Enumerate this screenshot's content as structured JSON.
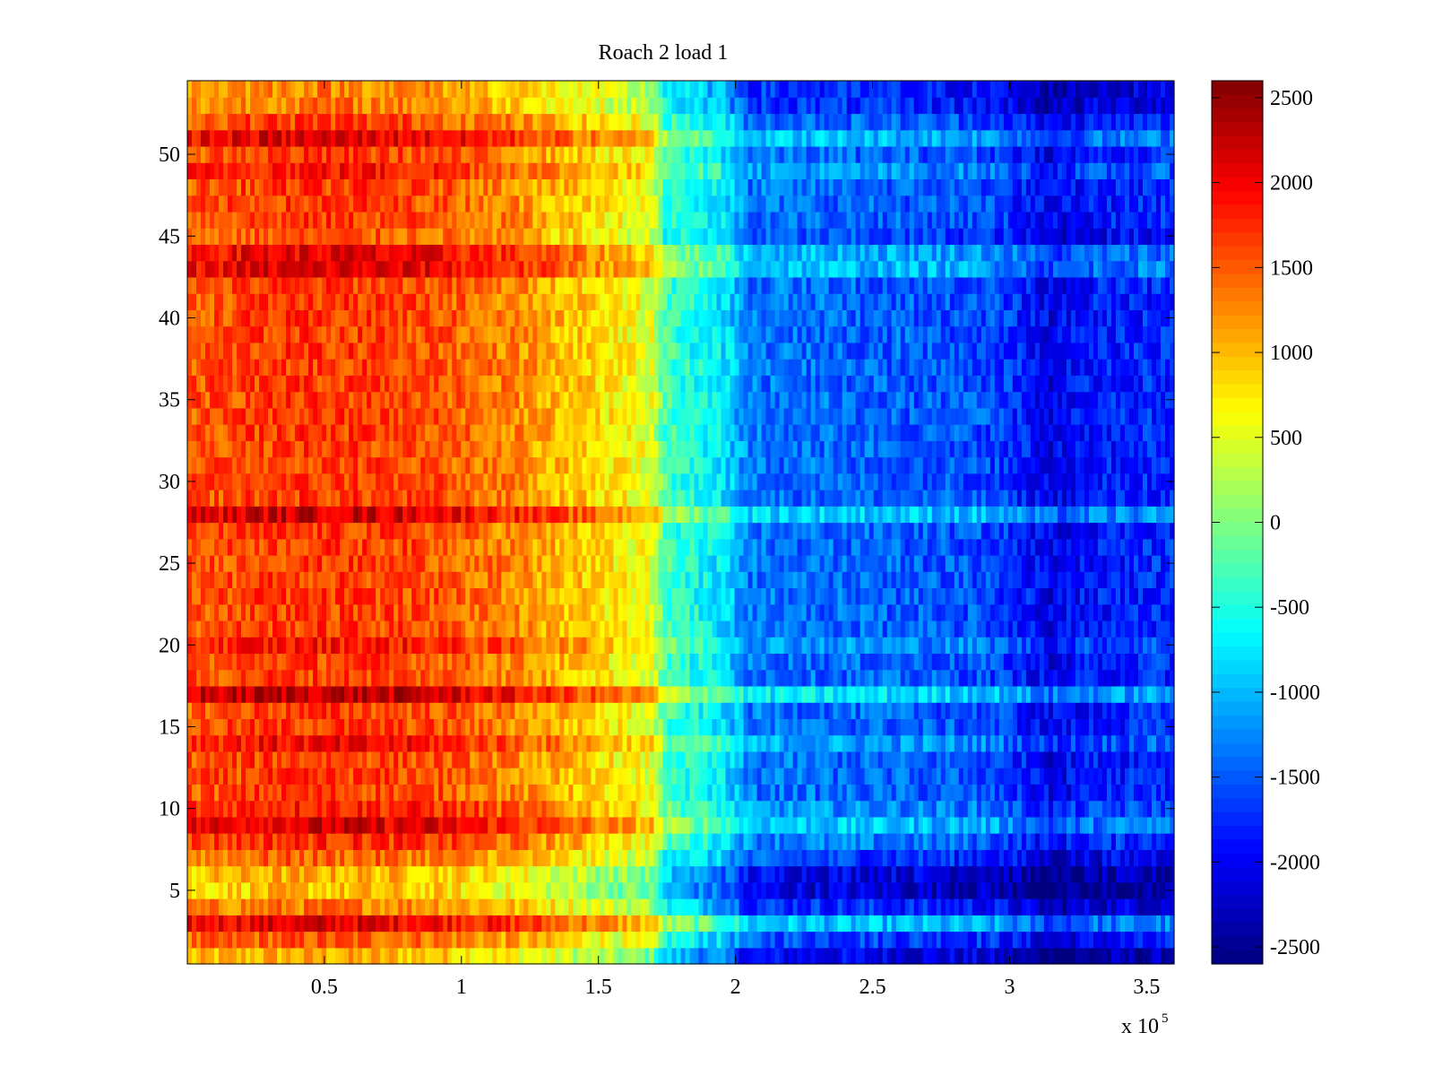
{
  "chart_data": {
    "type": "heatmap",
    "title": "Roach 2 load 1",
    "xlabel": "",
    "ylabel": "",
    "x_multiplier_label": "x 10",
    "x_multiplier_exponent": "5",
    "xlim": [
      0,
      3.6
    ],
    "ylim": [
      0.5,
      54.5
    ],
    "x_ticks": [
      0.5,
      1,
      1.5,
      2,
      2.5,
      3,
      3.5
    ],
    "x_tick_labels": [
      "0.5",
      "1",
      "1.5",
      "2",
      "2.5",
      "3",
      "3.5"
    ],
    "y_ticks": [
      5,
      10,
      15,
      20,
      25,
      30,
      35,
      40,
      45,
      50
    ],
    "y_tick_labels": [
      "5",
      "10",
      "15",
      "20",
      "25",
      "30",
      "35",
      "40",
      "45",
      "50"
    ],
    "colorbar": {
      "colormap": "jet",
      "range": [
        -2600,
        2600
      ],
      "ticks": [
        2500,
        2000,
        1500,
        1000,
        500,
        0,
        -500,
        -1000,
        -1500,
        -2000,
        -2500
      ],
      "tick_labels": [
        "2500",
        "2000",
        "1500",
        "1000",
        "500",
        "0",
        "-500",
        "-1000",
        "-1500",
        "-2000",
        "-2500"
      ]
    },
    "grid": false,
    "column_profile": {
      "x": [
        0,
        0.3,
        0.6,
        0.9,
        1.2,
        1.5,
        1.7,
        1.74,
        1.85,
        1.95,
        2.0,
        2.05,
        2.5,
        2.9,
        3.0,
        3.15,
        3.3,
        3.6
      ],
      "value": [
        1500,
        1650,
        1650,
        1550,
        1250,
        800,
        500,
        -300,
        -550,
        -750,
        -1000,
        -1350,
        -1450,
        -1550,
        -1700,
        -2050,
        -1850,
        -1750
      ]
    },
    "row_offsets": [
      {
        "row": 1,
        "offset": -600
      },
      {
        "row": 2,
        "offset": -150
      },
      {
        "row": 3,
        "offset": 450
      },
      {
        "row": 4,
        "offset": -300
      },
      {
        "row": 5,
        "offset": -700
      },
      {
        "row": 6,
        "offset": -600
      },
      {
        "row": 7,
        "offset": -200
      },
      {
        "row": 8,
        "offset": 100
      },
      {
        "row": 9,
        "offset": 500
      },
      {
        "row": 10,
        "offset": 200
      },
      {
        "row": 14,
        "offset": 300
      },
      {
        "row": 17,
        "offset": 650
      },
      {
        "row": 20,
        "offset": 250
      },
      {
        "row": 28,
        "offset": 550
      },
      {
        "row": 43,
        "offset": 450
      },
      {
        "row": 44,
        "offset": 400
      },
      {
        "row": 45,
        "offset": -150
      },
      {
        "row": 49,
        "offset": 250
      },
      {
        "row": 51,
        "offset": 450
      },
      {
        "row": 53,
        "offset": -300
      },
      {
        "row": 54,
        "offset": -350
      }
    ]
  }
}
